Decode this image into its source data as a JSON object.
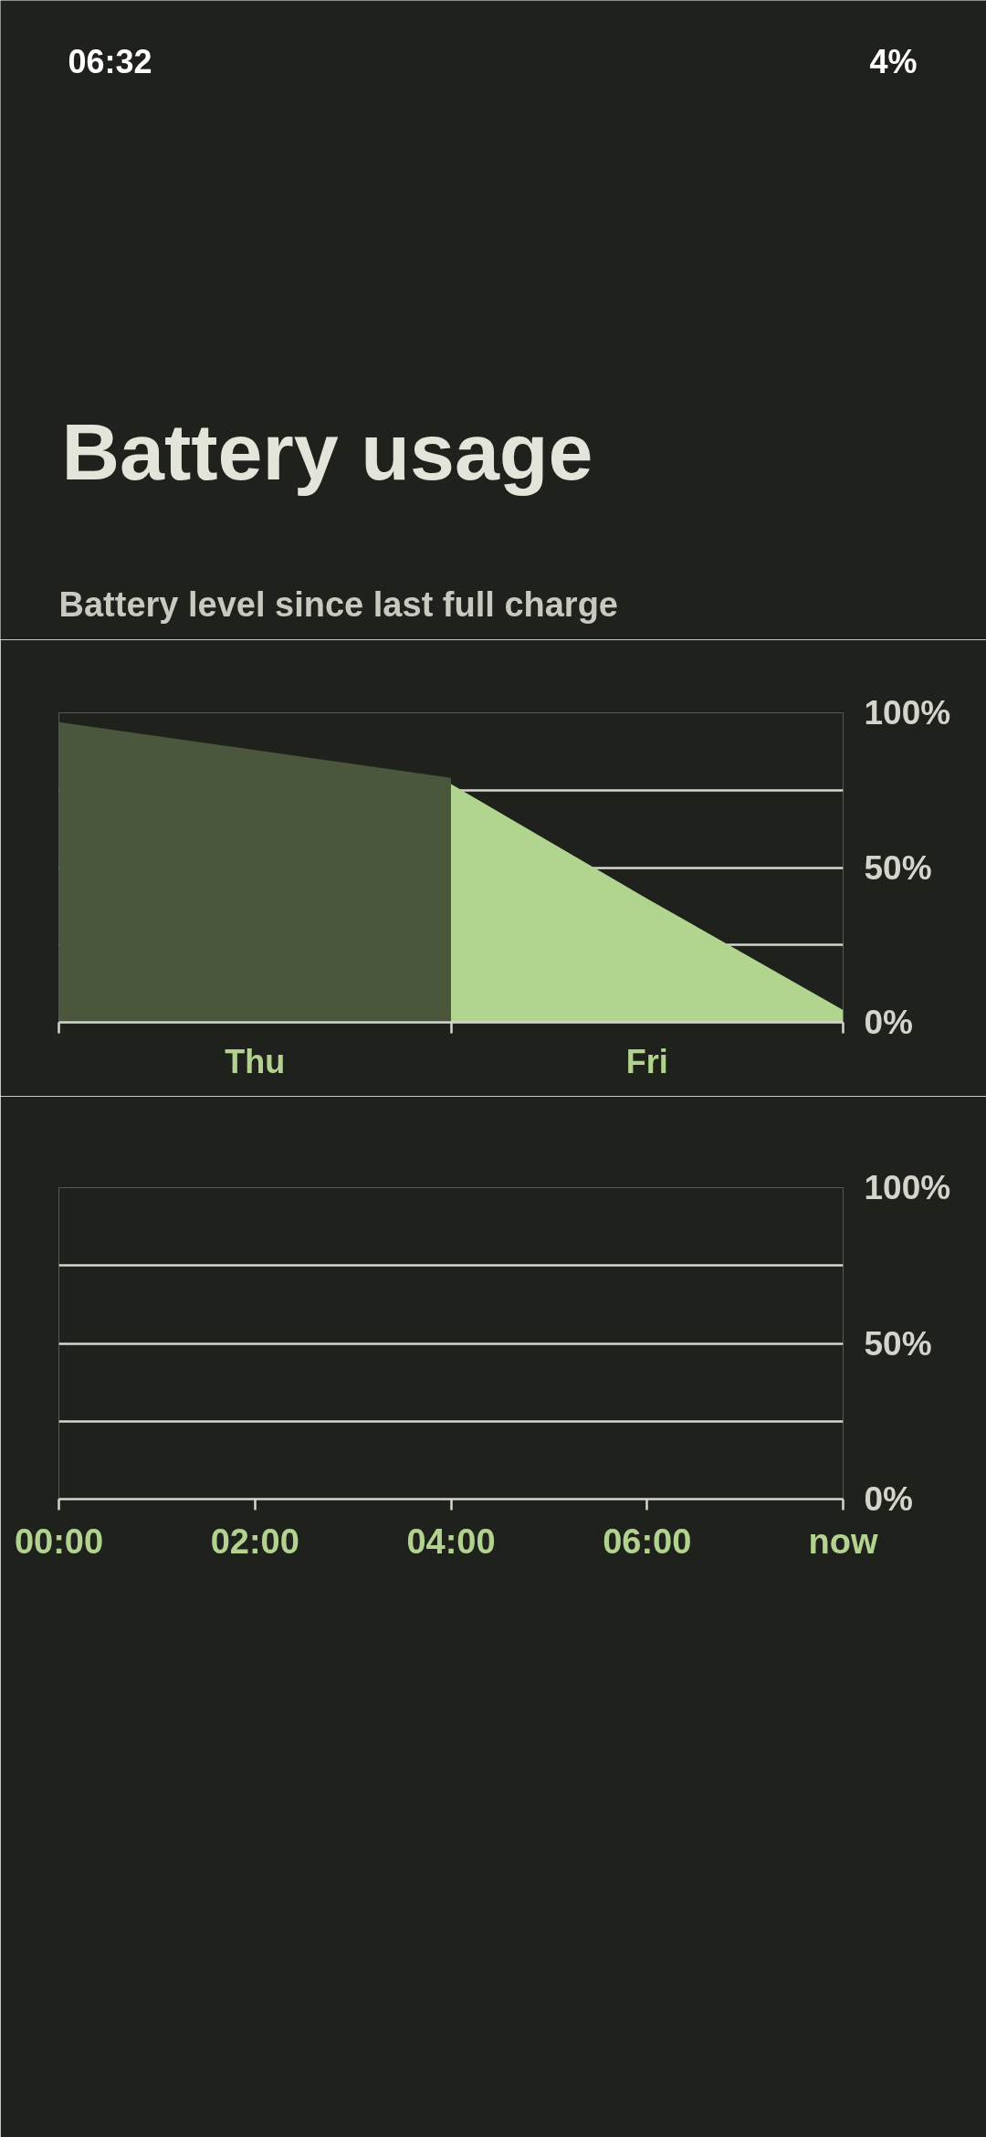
{
  "chart_data": [
    {
      "type": "area",
      "title": "Battery usage",
      "subtitle": "Battery level since last full charge",
      "annotations": [
        "06:32",
        "4%"
      ],
      "categories": [
        null,
        "Thu",
        null,
        "Fri",
        null
      ],
      "series": [
        {
          "color": "#4a573d",
          "values": [
            97,
            88,
            79,
            null,
            null
          ]
        },
        {
          "color": "#b1d48e",
          "values": [
            null,
            null,
            77,
            40,
            4
          ]
        }
      ],
      "ylim": [
        0,
        100
      ],
      "yticks": [
        {
          "value": 0,
          "label": "0%"
        },
        {
          "value": 25,
          "label": null
        },
        {
          "value": 50,
          "label": "50%"
        },
        {
          "value": 75,
          "label": null
        },
        {
          "value": 100,
          "label": "100%"
        }
      ],
      "grid": "y"
    },
    {
      "type": "bar",
      "xlim": [
        0,
        8
      ],
      "xticks": [
        {
          "value": 0,
          "label": "00:00"
        },
        {
          "value": 2,
          "label": "02:00"
        },
        {
          "value": 4,
          "label": "04:00"
        },
        {
          "value": 6,
          "label": "06:00"
        },
        {
          "value": 8,
          "label": "now"
        }
      ],
      "ylim": [
        0,
        100
      ],
      "yticks": [
        {
          "value": 0,
          "label": "0%"
        },
        {
          "value": 25,
          "label": null
        },
        {
          "value": 50,
          "label": "50%"
        },
        {
          "value": 75,
          "label": null
        },
        {
          "value": 100,
          "label": "100%"
        }
      ],
      "grid": "y"
    }
  ]
}
